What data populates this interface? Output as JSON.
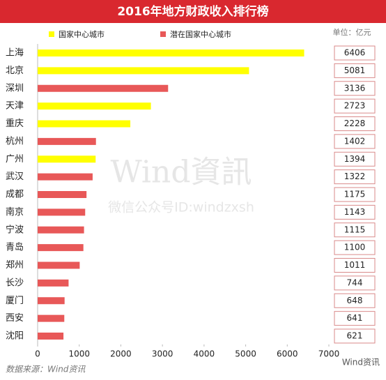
{
  "chart_data": {
    "type": "bar",
    "orientation": "horizontal",
    "title": "2016年地方财政收入排行榜",
    "unit": "单位：亿元",
    "categories": [
      "上海",
      "北京",
      "深圳",
      "天津",
      "重庆",
      "杭州",
      "广州",
      "武汉",
      "成都",
      "南京",
      "宁波",
      "青岛",
      "郑州",
      "长沙",
      "厦门",
      "西安",
      "沈阳"
    ],
    "series": [
      {
        "name": "国家中心城市",
        "color": "#ffff00",
        "values": [
          6406,
          5081,
          null,
          2723,
          2228,
          null,
          1394,
          null,
          null,
          null,
          null,
          null,
          null,
          null,
          null,
          null,
          null
        ]
      },
      {
        "name": "潜在国家中心城市",
        "color": "#e85858",
        "values": [
          null,
          null,
          3136,
          null,
          null,
          1402,
          null,
          1322,
          1175,
          1143,
          1115,
          1100,
          1011,
          744,
          648,
          641,
          621
        ]
      }
    ],
    "xlim": [
      0,
      7000
    ],
    "xticks": [
      0,
      1000,
      2000,
      3000,
      4000,
      5000,
      6000,
      7000
    ]
  },
  "footer": {
    "source": "数据来源：Wind资讯",
    "logo": "Wind资讯"
  },
  "watermark": {
    "brand": "Wind資訊",
    "account": "微信公众号ID:windzxsh"
  }
}
